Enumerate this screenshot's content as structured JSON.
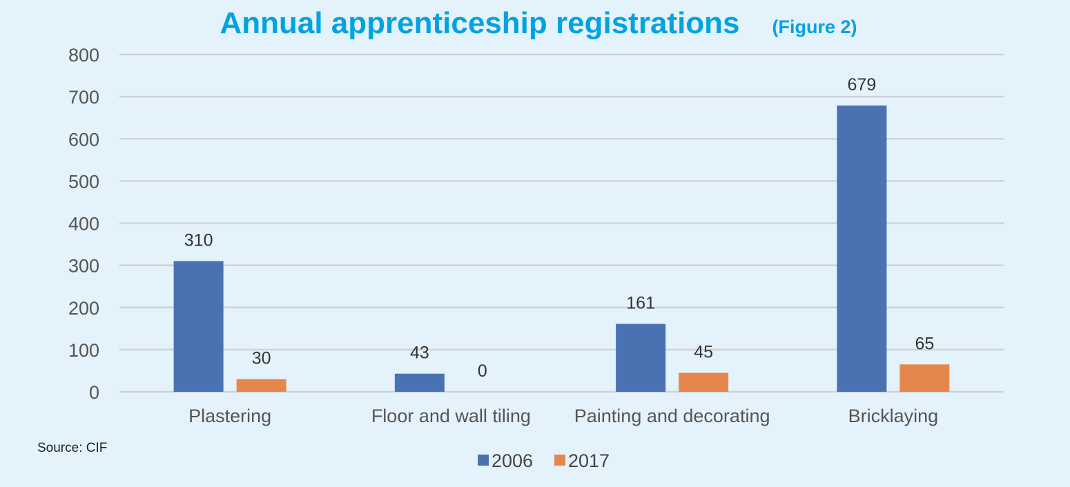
{
  "chart_data": {
    "type": "bar",
    "title": "Annual apprenticeship registrations",
    "subtitle": "(Figure 2)",
    "xlabel": "",
    "ylabel": "",
    "ylim": [
      0,
      800
    ],
    "yticks": [
      0,
      100,
      200,
      300,
      400,
      500,
      600,
      700,
      800
    ],
    "grid": true,
    "categories": [
      "Plastering",
      "Floor and wall tiling",
      "Painting and decorating",
      "Bricklaying"
    ],
    "series": [
      {
        "name": "2006",
        "color": "#4a72b2",
        "values": [
          310,
          43,
          161,
          679
        ]
      },
      {
        "name": "2017",
        "color": "#e5874d",
        "values": [
          30,
          0,
          45,
          65
        ]
      }
    ],
    "legend_position": "bottom-center",
    "source": "Source: CIF"
  }
}
